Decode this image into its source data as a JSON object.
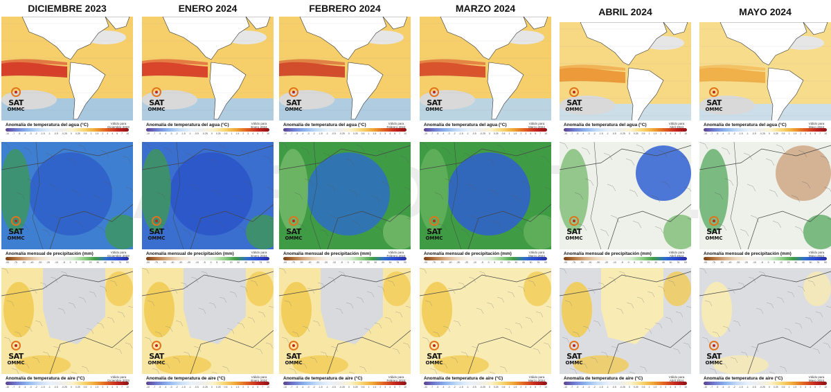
{
  "months": [
    {
      "title": "DICIEMBRE 2023",
      "ocean_title": "Anomalía de temperatura del agua (°C)",
      "prec_title": "Anomalía mensual de precipitación (mm)",
      "air_title": "Anomalía de temperatura de aire (°C)",
      "valid_label": "Válido para",
      "valid_period": "Diciembre 2023",
      "ocean_colors": {
        "base": "#f6cf6b",
        "band": "#d6402a",
        "cool": "#9fc7ec"
      },
      "prec_colors": {
        "base": "#3f7fd1",
        "alt": "#2e5fc9",
        "edge": "#3c9a4c"
      },
      "air_colors": {
        "base": "#f7e6a4",
        "alt": "#d7d9dc",
        "warm": "#f1cc55"
      }
    },
    {
      "title": "ENERO 2024",
      "ocean_title": "Anomalía de temperatura del agua (°C)",
      "prec_title": "Anomalía mensual de precipitación (mm)",
      "air_title": "Anomalía de temperatura de aire (°C)",
      "valid_label": "Válido para",
      "valid_period": "Enero 2024",
      "ocean_colors": {
        "base": "#f6cf6b",
        "band": "#d8452a",
        "cool": "#a7cbee"
      },
      "prec_colors": {
        "base": "#3a6fd0",
        "alt": "#2a55c8",
        "edge": "#3f9c45"
      },
      "air_colors": {
        "base": "#f7e6a4",
        "alt": "#d8dadd",
        "warm": "#f1cc55"
      }
    },
    {
      "title": "FEBRERO 2024",
      "ocean_title": "Anomalía de temperatura del agua (°C)",
      "prec_title": "Anomalía mensual de precipitación (mm)",
      "air_title": "Anomalía de temperatura de aire (°C)",
      "valid_label": "Válido para",
      "valid_period": "Febrero 2024",
      "ocean_colors": {
        "base": "#f6cf6b",
        "band": "#d24d2b",
        "cool": "#a7cbee"
      },
      "prec_colors": {
        "base": "#3f9c45",
        "alt": "#2e6fc6",
        "edge": "#7ebf72"
      },
      "air_colors": {
        "base": "#f7e6a4",
        "alt": "#d8dadd",
        "warm": "#f1cc55"
      }
    },
    {
      "title": "MARZO 2024",
      "ocean_title": "Anomalía de temperatura del agua (°C)",
      "prec_title": "Anomalía mensual de precipitación (mm)",
      "air_title": "Anomalía de temperatura de aire (°C)",
      "valid_label": "Válido para",
      "valid_period": "Marzo 2024",
      "ocean_colors": {
        "base": "#f6cf6b",
        "band": "#d9532c",
        "cool": "#b5d4f0"
      },
      "prec_colors": {
        "base": "#3f9c45",
        "alt": "#2f5fd0",
        "edge": "#6cb563"
      },
      "air_colors": {
        "base": "#f8ebb3",
        "alt": "#f8ebb3",
        "warm": "#f1cc55"
      }
    },
    {
      "title": "ABRIL 2024",
      "ocean_title": "Anomalía de temperatura del agua (°C)",
      "prec_title": "Anomalía mensual de precipitación (mm)",
      "air_title": "Anomalía de temperatura de aire (°C)",
      "valid_label": "Válido para",
      "valid_period": "Abril 2024",
      "ocean_colors": {
        "base": "#f7d984",
        "band": "#ec9a3a",
        "cool": "#c7def3"
      },
      "prec_colors": {
        "base": "#eef1ea",
        "alt": "#2f62d2",
        "edge": "#6cb563"
      },
      "air_colors": {
        "base": "#dcdde0",
        "alt": "#f8ebb3",
        "warm": "#f1cc55"
      }
    },
    {
      "title": "MAYO 2024",
      "ocean_title": "Anomalía de temperatura del agua (°C)",
      "prec_title": "Anomalía mensual de precipitación (mm)",
      "air_title": "Anomalía de temperatura de aire (°C)",
      "valid_label": "Válido para",
      "valid_period": "Mayo 2024",
      "ocean_colors": {
        "base": "#f7dc8c",
        "band": "#f0b04a",
        "cool": "#c7def3"
      },
      "prec_colors": {
        "base": "#eef1ea",
        "alt": "#cfa886",
        "edge": "#4aa254"
      },
      "air_colors": {
        "base": "#dcdde0",
        "alt": "#dcdde0",
        "warm": "#f8ebb3"
      }
    }
  ],
  "logo": {
    "text": "SAT",
    "subtext": "OMMC"
  },
  "watermark": "AGRODIGITAL",
  "temp_ticks": [
    "-10",
    "-7",
    "-5",
    "-4",
    "-3",
    "-2",
    "-1.5",
    "-1",
    "-0.5",
    "-0.25",
    "0",
    "0.25",
    "0.5",
    "1",
    "1.5",
    "2",
    "3",
    "4",
    "5",
    "7",
    "10"
  ],
  "prec_ticks": [
    "-99",
    "-75",
    "-50",
    "-40",
    "-30",
    "-20",
    "-10",
    "-5",
    "0",
    "5",
    "10",
    "20",
    "30",
    "40",
    "50",
    "75",
    "99"
  ]
}
